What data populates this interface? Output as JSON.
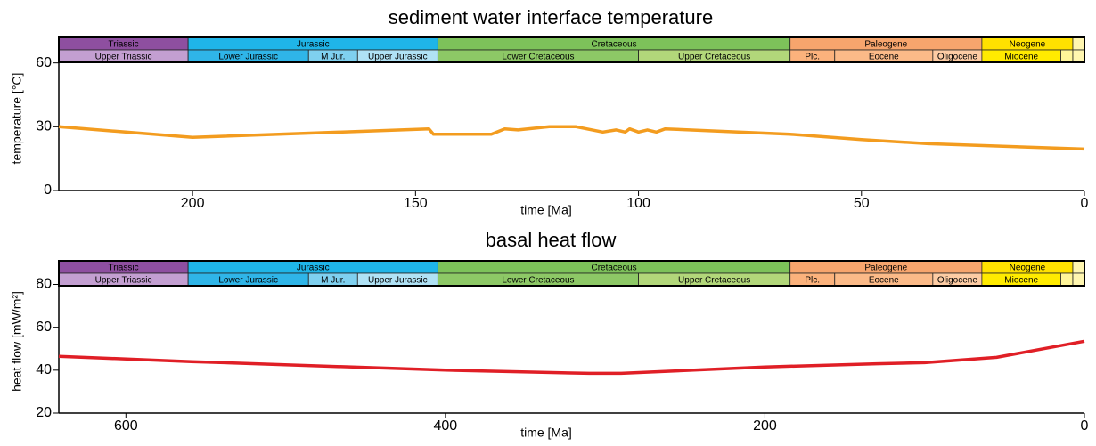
{
  "timescale": {
    "xlim": [
      230,
      0
    ],
    "periods": {
      "names": [
        "Triassic",
        "Jurassic",
        "Cretaceous",
        "Paleogene",
        "Neogene",
        null
      ],
      "edges": [
        230,
        201,
        145,
        66,
        23,
        2.6,
        0
      ],
      "colors": [
        "#8e4fa0",
        "#1fb5e8",
        "#7dc25a",
        "#f7a56d",
        "#ffe100",
        "#fff6b0"
      ]
    },
    "epochs": {
      "names": [
        "Upper Triassic",
        "Lower Jurassic",
        "M Jur.",
        "Upper Jurassic",
        "Lower Cretaceous",
        "Upper Cretaceous",
        "Plc.",
        "Eocene",
        "Oligocene",
        "Miocene",
        null,
        null
      ],
      "edges": [
        230,
        201,
        174,
        163,
        145,
        100,
        66,
        56,
        34,
        23,
        5.3,
        2.6,
        0
      ],
      "colors": [
        "#c39fd1",
        "#2fb5e8",
        "#7fd0ef",
        "#b0e2f5",
        "#8dc866",
        "#b2d77a",
        "#fbb27c",
        "#fbba88",
        "#fdcca4",
        "#ffeb00",
        "#fff599",
        "#fff6b0"
      ]
    }
  },
  "chart_data": [
    {
      "type": "line",
      "title": "sediment water interface temperature",
      "x_label": "time [Ma]",
      "y_label": "temperature [°C]",
      "x": [
        230,
        200,
        147,
        146,
        133,
        130,
        127,
        120,
        114,
        108,
        105,
        103,
        102,
        100,
        98,
        96,
        94,
        66,
        50,
        35,
        0
      ],
      "values": [
        30,
        25,
        29,
        26.5,
        26.5,
        29,
        28.5,
        30,
        30,
        27.5,
        28.5,
        27.5,
        29,
        27.5,
        28.5,
        27.5,
        29,
        26.5,
        24,
        22,
        19.5
      ],
      "color": "#f39c1f",
      "xlim": [
        230,
        0
      ],
      "ylim": [
        0,
        72
      ],
      "xticks": [
        200,
        150,
        100,
        50,
        0
      ],
      "yticks": [
        0,
        30,
        60
      ]
    },
    {
      "type": "line",
      "title": "basal heat flow",
      "x_label": "time [Ma]",
      "y_label": "heat flow [mW/m²]",
      "x": [
        642,
        559,
        400,
        310,
        290,
        200,
        130,
        100,
        55,
        0
      ],
      "values": [
        46.5,
        44,
        40,
        38.5,
        38.5,
        41.5,
        43,
        43.5,
        46,
        53.5
      ],
      "color": "#e01f26",
      "xlim": [
        642,
        0
      ],
      "ylim": [
        20,
        91
      ],
      "xticks": [
        600,
        400,
        200,
        0
      ],
      "yticks": [
        20,
        40,
        60,
        80
      ]
    }
  ]
}
